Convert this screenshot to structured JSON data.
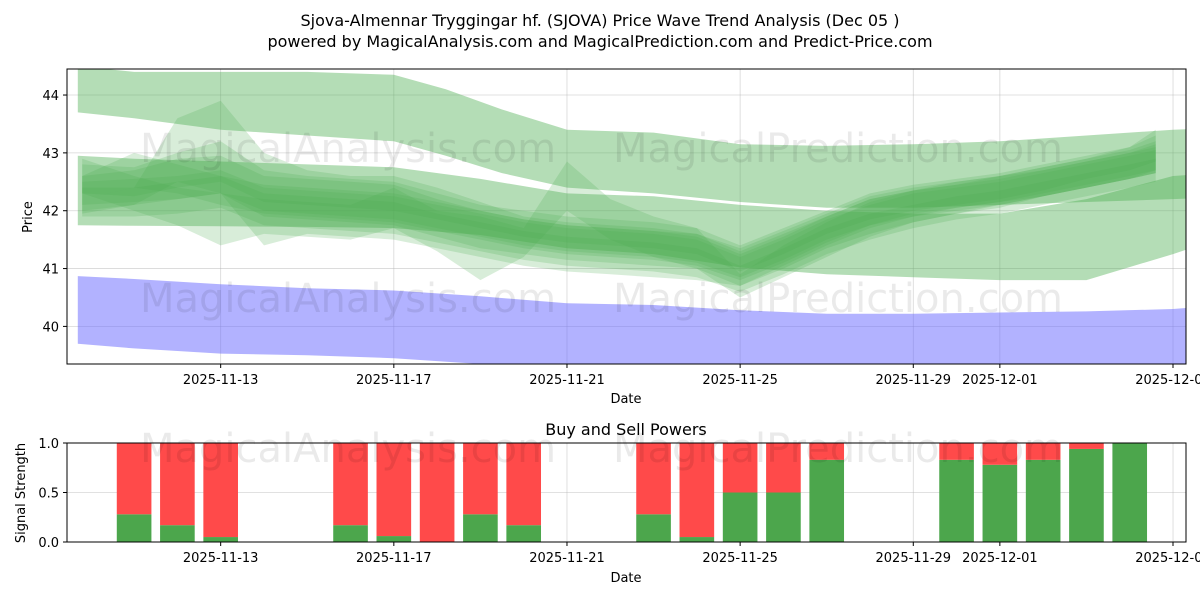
{
  "header": {
    "title_line1": "Sjova-Almennar Tryggingar hf. (SJOVA) Price Wave Trend Analysis (Dec 05 )",
    "title_line2": "powered by MagicalAnalysis.com and MagicalPrediction.com and Predict-Price.com"
  },
  "watermarks": [
    "MagicalAnalysis.com",
    "MagicalPrediction.com"
  ],
  "colors": {
    "green_band": "#4caf50",
    "blue_band": "#6666ff",
    "buy": "#4ca64c",
    "sell": "#ff4a4a"
  },
  "chart_data": [
    {
      "type": "area",
      "title": "",
      "xlabel": "Date",
      "ylabel": "Price",
      "ylim": [
        39.35,
        44.45
      ],
      "yticks": [
        40,
        41,
        42,
        43,
        44
      ],
      "ytick_labels": [
        "40",
        "41",
        "42",
        "43",
        "44"
      ],
      "x_range_days": [
        -1.55,
        24.3
      ],
      "xticks": [
        {
          "day": 2,
          "label": "2025-11-13"
        },
        {
          "day": 6,
          "label": "2025-11-17"
        },
        {
          "day": 10,
          "label": "2025-11-21"
        },
        {
          "day": 14,
          "label": "2025-11-25"
        },
        {
          "day": 18,
          "label": "2025-11-29"
        },
        {
          "day": 20,
          "label": "2025-12-01"
        },
        {
          "day": 24,
          "label": "2025-12-05"
        }
      ],
      "series": [
        {
          "name": "upper-wave-band",
          "color": "green",
          "x": [
            -1.3,
            0,
            2,
            4,
            6,
            7.2,
            8.5,
            10,
            12,
            14,
            16,
            18,
            20,
            22,
            24,
            24.8
          ],
          "upper": [
            44.5,
            44.4,
            44.4,
            44.4,
            44.35,
            44.1,
            43.75,
            43.4,
            43.35,
            43.15,
            43.12,
            43.15,
            43.2,
            43.3,
            43.4,
            43.42
          ],
          "lower": [
            43.7,
            43.6,
            43.4,
            43.3,
            43.2,
            42.95,
            42.65,
            42.4,
            42.3,
            42.15,
            42.05,
            42.05,
            42.1,
            42.15,
            42.2,
            42.22
          ]
        },
        {
          "name": "mid-wave-band",
          "color": "green",
          "x": [
            -1.3,
            0,
            2,
            4,
            6,
            8,
            10,
            12,
            14,
            16,
            18,
            20,
            22,
            24,
            25
          ],
          "upper": [
            42.95,
            42.9,
            42.85,
            42.8,
            42.75,
            42.55,
            42.3,
            42.25,
            42.1,
            42.0,
            41.95,
            41.95,
            42.2,
            42.6,
            42.65
          ],
          "lower": [
            41.75,
            41.74,
            41.73,
            41.72,
            41.7,
            41.58,
            41.35,
            41.25,
            41.02,
            40.9,
            40.85,
            40.8,
            40.8,
            41.25,
            41.5
          ]
        },
        {
          "name": "wave-1",
          "color": "green",
          "x": [
            -1.2,
            0,
            1,
            2,
            3,
            4,
            5,
            6,
            7,
            8,
            9,
            10,
            11,
            12,
            13,
            14,
            15,
            16,
            17,
            18,
            19,
            20,
            21,
            22,
            23,
            23.6
          ],
          "upper": [
            42.6,
            42.7,
            42.9,
            42.95,
            42.6,
            42.55,
            42.5,
            42.45,
            42.2,
            42.0,
            41.85,
            41.75,
            41.7,
            41.65,
            41.6,
            41.3,
            41.6,
            41.9,
            42.2,
            42.35,
            42.45,
            42.55,
            42.7,
            42.85,
            43.0,
            43.1
          ],
          "lower": [
            42.0,
            42.1,
            42.2,
            42.3,
            41.9,
            41.85,
            41.8,
            41.75,
            41.55,
            41.35,
            41.25,
            41.15,
            41.1,
            41.05,
            41.0,
            40.7,
            41.0,
            41.35,
            41.6,
            41.8,
            41.95,
            42.05,
            42.25,
            42.4,
            42.55,
            42.65
          ]
        },
        {
          "name": "wave-2",
          "color": "green",
          "x": [
            -1.2,
            0,
            1,
            2,
            3,
            4,
            5,
            6,
            7,
            8,
            9,
            10,
            11,
            12,
            13,
            14,
            15,
            16,
            17,
            18,
            19,
            20,
            21,
            22,
            23,
            23.6
          ],
          "upper": [
            42.5,
            42.55,
            42.6,
            42.7,
            42.4,
            42.35,
            42.3,
            42.25,
            42.1,
            41.95,
            41.8,
            41.7,
            41.65,
            41.6,
            41.5,
            41.2,
            41.5,
            41.85,
            42.1,
            42.3,
            42.4,
            42.5,
            42.65,
            42.8,
            42.95,
            43.05
          ],
          "lower": [
            42.1,
            42.15,
            42.2,
            42.3,
            42.0,
            41.95,
            41.9,
            41.85,
            41.7,
            41.55,
            41.4,
            41.3,
            41.25,
            41.2,
            41.1,
            40.85,
            41.15,
            41.5,
            41.75,
            41.95,
            42.05,
            42.15,
            42.3,
            42.45,
            42.6,
            42.7
          ]
        },
        {
          "name": "wave-3",
          "color": "green",
          "x": [
            -1.2,
            0,
            1,
            2,
            3,
            4,
            5,
            6,
            7,
            8,
            9,
            10,
            11,
            12,
            13,
            14,
            15,
            16,
            17,
            18,
            19,
            20,
            21,
            22,
            23,
            23.6
          ],
          "upper": [
            42.8,
            42.75,
            43.0,
            43.2,
            42.7,
            42.6,
            42.55,
            42.5,
            42.3,
            42.1,
            42.0,
            41.9,
            41.85,
            41.8,
            41.7,
            41.4,
            41.7,
            42.0,
            42.3,
            42.45,
            42.55,
            42.65,
            42.8,
            42.95,
            43.1,
            43.3
          ],
          "lower": [
            42.3,
            42.25,
            42.4,
            42.5,
            42.15,
            42.1,
            42.05,
            42.0,
            41.85,
            41.7,
            41.55,
            41.45,
            41.4,
            41.35,
            41.25,
            40.95,
            41.25,
            41.6,
            41.85,
            42.0,
            42.1,
            42.2,
            42.35,
            42.55,
            42.7,
            42.85
          ]
        },
        {
          "name": "wave-4",
          "color": "green",
          "x": [
            -1.2,
            0,
            1,
            2,
            3,
            4,
            5,
            6,
            7,
            8,
            9,
            10,
            11,
            12,
            13,
            14,
            15,
            16,
            17,
            18,
            19,
            20,
            21,
            22,
            23,
            23.6
          ],
          "upper": [
            42.4,
            42.4,
            42.5,
            42.6,
            42.3,
            42.25,
            42.2,
            42.15,
            41.95,
            41.8,
            41.65,
            41.55,
            41.5,
            41.45,
            41.35,
            41.05,
            41.35,
            41.7,
            41.95,
            42.1,
            42.25,
            42.35,
            42.5,
            42.65,
            42.8,
            42.9
          ],
          "lower": [
            41.9,
            41.9,
            41.95,
            42.05,
            41.75,
            41.7,
            41.65,
            41.6,
            41.45,
            41.3,
            41.15,
            41.05,
            41.0,
            40.95,
            40.85,
            40.6,
            40.9,
            41.25,
            41.5,
            41.7,
            41.85,
            41.95,
            42.1,
            42.25,
            42.4,
            42.5
          ]
        },
        {
          "name": "wave-5",
          "color": "green",
          "x": [
            -1.2,
            0,
            1,
            2,
            3,
            4,
            5,
            6,
            7,
            8,
            9,
            10,
            11,
            12,
            13,
            14,
            15,
            16,
            17,
            18,
            19,
            20,
            21,
            22,
            23,
            23.6
          ],
          "upper": [
            42.9,
            42.6,
            42.4,
            42.3,
            42.2,
            42.15,
            42.1,
            42.4,
            42.0,
            41.9,
            41.7,
            42.85,
            42.2,
            41.9,
            41.7,
            40.9,
            41.4,
            41.8,
            42.15,
            42.35,
            42.45,
            42.6,
            42.75,
            42.9,
            43.05,
            43.2
          ],
          "lower": [
            42.3,
            42.0,
            41.75,
            41.4,
            41.6,
            41.55,
            41.5,
            41.7,
            41.3,
            40.8,
            41.2,
            42.0,
            41.5,
            41.2,
            41.0,
            40.5,
            40.85,
            41.2,
            41.55,
            41.8,
            41.95,
            42.1,
            42.25,
            42.4,
            42.55,
            42.7
          ]
        },
        {
          "name": "wave-6",
          "color": "green",
          "x": [
            -1.2,
            0,
            1,
            2,
            3,
            4,
            5,
            6,
            7,
            8,
            9,
            10,
            11,
            12,
            13,
            14,
            15,
            16,
            17,
            18,
            19,
            20,
            21,
            22,
            23,
            23.6
          ],
          "upper": [
            42.2,
            42.4,
            43.6,
            43.9,
            43.0,
            42.7,
            42.6,
            42.6,
            42.4,
            42.15,
            41.9,
            41.8,
            41.75,
            41.7,
            41.6,
            41.35,
            41.65,
            41.95,
            42.25,
            42.4,
            42.5,
            42.6,
            42.75,
            42.9,
            43.1,
            43.4
          ],
          "lower": [
            41.95,
            42.1,
            42.5,
            42.3,
            41.4,
            41.6,
            41.55,
            41.5,
            41.35,
            41.2,
            41.05,
            40.95,
            40.9,
            40.85,
            40.8,
            40.7,
            41.05,
            41.4,
            41.7,
            41.9,
            42.0,
            42.1,
            42.25,
            42.4,
            42.55,
            42.65
          ]
        },
        {
          "name": "wave-7",
          "color": "green",
          "x": [
            -1.2,
            0,
            1,
            2,
            3,
            4,
            5,
            6,
            7,
            8,
            9,
            10,
            11,
            12,
            13,
            14,
            15,
            16,
            17,
            18,
            19,
            20,
            21,
            22,
            23,
            23.6
          ],
          "upper": [
            42.6,
            43.0,
            42.8,
            42.6,
            42.45,
            42.4,
            42.35,
            42.3,
            42.15,
            42.0,
            41.85,
            41.75,
            41.7,
            41.65,
            41.55,
            41.25,
            41.55,
            41.9,
            42.2,
            42.35,
            42.5,
            42.6,
            42.7,
            42.85,
            43.0,
            43.15
          ],
          "lower": [
            42.2,
            42.4,
            42.3,
            42.1,
            41.95,
            41.9,
            41.85,
            41.8,
            41.65,
            41.5,
            41.35,
            41.25,
            41.2,
            41.15,
            41.05,
            40.8,
            41.1,
            41.45,
            41.75,
            41.9,
            42.05,
            42.15,
            42.25,
            42.4,
            42.55,
            42.65
          ]
        },
        {
          "name": "lower-wave-band",
          "color": "blue",
          "x": [
            -1.3,
            0,
            2,
            4,
            6,
            8,
            10,
            12,
            14,
            16,
            18,
            20,
            22,
            24,
            24.8
          ],
          "upper": [
            40.87,
            40.82,
            40.73,
            40.66,
            40.62,
            40.52,
            40.4,
            40.37,
            40.28,
            40.22,
            40.22,
            40.24,
            40.26,
            40.3,
            40.35
          ],
          "lower": [
            39.7,
            39.62,
            39.53,
            39.5,
            39.45,
            39.35,
            39.3,
            39.25,
            39.2,
            39.2,
            39.2,
            39.22,
            39.25,
            39.3,
            39.3
          ]
        }
      ]
    },
    {
      "type": "bar",
      "title": "Buy and Sell Powers",
      "xlabel": "Date",
      "ylabel": "Signal Strength",
      "ylim": [
        0,
        1
      ],
      "yticks": [
        0,
        0.5,
        1
      ],
      "ytick_labels": [
        "0.0",
        "0.5",
        "1.0"
      ],
      "x_range_days": [
        -1.55,
        24.3
      ],
      "xticks": [
        {
          "day": 2,
          "label": "2025-11-13"
        },
        {
          "day": 6,
          "label": "2025-11-17"
        },
        {
          "day": 10,
          "label": "2025-11-21"
        },
        {
          "day": 14,
          "label": "2025-11-25"
        },
        {
          "day": 18,
          "label": "2025-11-29"
        },
        {
          "day": 20,
          "label": "2025-12-01"
        },
        {
          "day": 24,
          "label": "2025-12-05"
        }
      ],
      "x": [
        0,
        1,
        2,
        5,
        6,
        7,
        8,
        9,
        12,
        13,
        14,
        15,
        16,
        19,
        20,
        21,
        22,
        23
      ],
      "series": [
        {
          "name": "Buy",
          "values": [
            0.28,
            0.17,
            0.05,
            0.17,
            0.06,
            0.0,
            0.28,
            0.17,
            0.28,
            0.05,
            0.5,
            0.5,
            0.83,
            0.83,
            0.78,
            0.83,
            0.94,
            1.0
          ]
        },
        {
          "name": "Sell",
          "values": [
            0.72,
            0.83,
            0.95,
            0.83,
            0.94,
            1.0,
            0.72,
            0.83,
            0.72,
            0.95,
            0.5,
            0.5,
            0.17,
            0.17,
            0.22,
            0.17,
            0.06,
            0.0
          ]
        }
      ]
    }
  ]
}
